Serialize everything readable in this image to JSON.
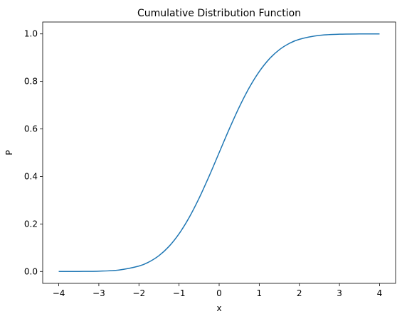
{
  "chart_data": {
    "type": "line",
    "title": "Cumulative Distribution Function",
    "xlabel": "x",
    "ylabel": "P",
    "xlim": [
      -4.4,
      4.4
    ],
    "ylim": [
      -0.05,
      1.05
    ],
    "x_ticks": [
      -4,
      -3,
      -2,
      -1,
      0,
      1,
      2,
      3,
      4
    ],
    "x_tick_labels": [
      "−4",
      "−3",
      "−2",
      "−1",
      "0",
      "1",
      "2",
      "3",
      "4"
    ],
    "y_ticks": [
      0.0,
      0.2,
      0.4,
      0.6,
      0.8,
      1.0
    ],
    "y_tick_labels": [
      "0.0",
      "0.2",
      "0.4",
      "0.6",
      "0.8",
      "1.0"
    ],
    "grid": false,
    "series": [
      {
        "color": "#1f77b4",
        "x": [
          -4,
          -3.5,
          -3,
          -2.5,
          -2,
          -1.75,
          -1.5,
          -1.25,
          -1,
          -0.75,
          -0.5,
          -0.25,
          0,
          0.25,
          0.5,
          0.75,
          1,
          1.25,
          1.5,
          1.75,
          2,
          2.5,
          3,
          3.5,
          4
        ],
        "y": [
          3e-05,
          0.0002,
          0.0013,
          0.0062,
          0.0228,
          0.0401,
          0.0668,
          0.1056,
          0.1587,
          0.2266,
          0.3085,
          0.4013,
          0.5,
          0.5987,
          0.6915,
          0.7734,
          0.8413,
          0.8944,
          0.9332,
          0.9599,
          0.9772,
          0.9938,
          0.9987,
          0.9998,
          0.99997
        ]
      }
    ]
  }
}
